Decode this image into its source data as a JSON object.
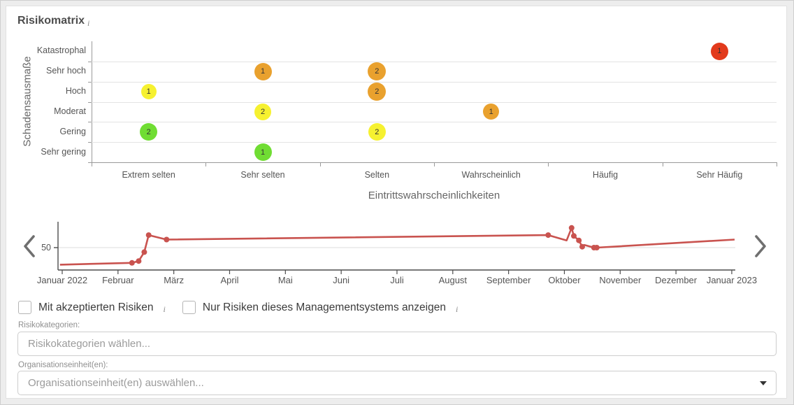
{
  "header": {
    "title": "Risikomatrix"
  },
  "chart_data": [
    {
      "type": "scatter",
      "name": "risk-matrix",
      "title": "Risikomatrix",
      "xlabel": "Eintrittswahrscheinlichkeiten",
      "ylabel": "Schadensausmaße",
      "x_categories": [
        "Extrem selten",
        "Sehr selten",
        "Selten",
        "Wahrscheinlich",
        "Häufig",
        "Sehr Häufig"
      ],
      "y_categories_top_to_bottom": [
        "Katastrophal",
        "Sehr hoch",
        "Hoch",
        "Moderat",
        "Gering",
        "Sehr gering"
      ],
      "grid": "horizontal",
      "points": [
        {
          "x": "Extrem selten",
          "y": "Hoch",
          "count": 1,
          "color": "#f6f130",
          "size": 22
        },
        {
          "x": "Extrem selten",
          "y": "Gering",
          "count": 2,
          "color": "#70dd33",
          "size": 25
        },
        {
          "x": "Sehr selten",
          "y": "Sehr hoch",
          "count": 1,
          "color": "#e9a12e",
          "size": 25
        },
        {
          "x": "Sehr selten",
          "y": "Moderat",
          "count": 2,
          "color": "#f6f130",
          "size": 24
        },
        {
          "x": "Sehr selten",
          "y": "Sehr gering",
          "count": 1,
          "color": "#70dd33",
          "size": 25
        },
        {
          "x": "Selten",
          "y": "Sehr hoch",
          "count": 2,
          "color": "#e9a12e",
          "size": 26
        },
        {
          "x": "Selten",
          "y": "Hoch",
          "count": 2,
          "color": "#e9a12e",
          "size": 26
        },
        {
          "x": "Selten",
          "y": "Gering",
          "count": 2,
          "color": "#f6f130",
          "size": 25
        },
        {
          "x": "Wahrscheinlich",
          "y": "Moderat",
          "count": 1,
          "color": "#e9a12e",
          "size": 23
        },
        {
          "x": "Sehr Häufig",
          "y": "Katastrophal",
          "count": 1,
          "color": "#e23a1c",
          "size": 25
        }
      ]
    },
    {
      "type": "line",
      "name": "risk-trend-timeline",
      "color": "#c9534f",
      "y_tick_labels": [
        "50"
      ],
      "y_gridline_value": 50,
      "x_tick_labels": [
        "Januar 2022",
        "Februar",
        "März",
        "April",
        "Mai",
        "Juni",
        "Juli",
        "August",
        "September",
        "Oktober",
        "November",
        "Dezember",
        "Januar 2023"
      ],
      "points": [
        {
          "m": -0.04,
          "v": 31,
          "dot": false
        },
        {
          "m": 1.25,
          "v": 33,
          "dot": true
        },
        {
          "m": 1.37,
          "v": 35,
          "dot": true
        },
        {
          "m": 1.47,
          "v": 45,
          "dot": true
        },
        {
          "m": 1.55,
          "v": 64,
          "dot": true
        },
        {
          "m": 1.87,
          "v": 59,
          "dot": true
        },
        {
          "m": 8.71,
          "v": 64,
          "dot": true
        },
        {
          "m": 9.04,
          "v": 58,
          "dot": false
        },
        {
          "m": 9.13,
          "v": 72,
          "dot": true
        },
        {
          "m": 9.17,
          "v": 63,
          "dot": true
        },
        {
          "m": 9.26,
          "v": 58,
          "dot": true
        },
        {
          "m": 9.32,
          "v": 51,
          "dot": true
        },
        {
          "m": 9.36,
          "v": 53,
          "dot": false
        },
        {
          "m": 9.53,
          "v": 50,
          "dot": true
        },
        {
          "m": 9.58,
          "v": 50,
          "dot": true
        },
        {
          "m": 12.05,
          "v": 59,
          "dot": false
        }
      ]
    }
  ],
  "filters": {
    "accepted_risks": {
      "label": "Mit akzeptierten Risiken",
      "checked": false
    },
    "management_system": {
      "label": "Nur Risiken dieses Managementsystems anzeigen",
      "checked": false
    },
    "risk_categories": {
      "label": "Risikokategorien:",
      "placeholder": "Risikokategorien wählen..."
    },
    "org_units": {
      "label": "Organisationseinheit(en):",
      "placeholder": "Organisationseinheit(en) auswählen..."
    }
  }
}
